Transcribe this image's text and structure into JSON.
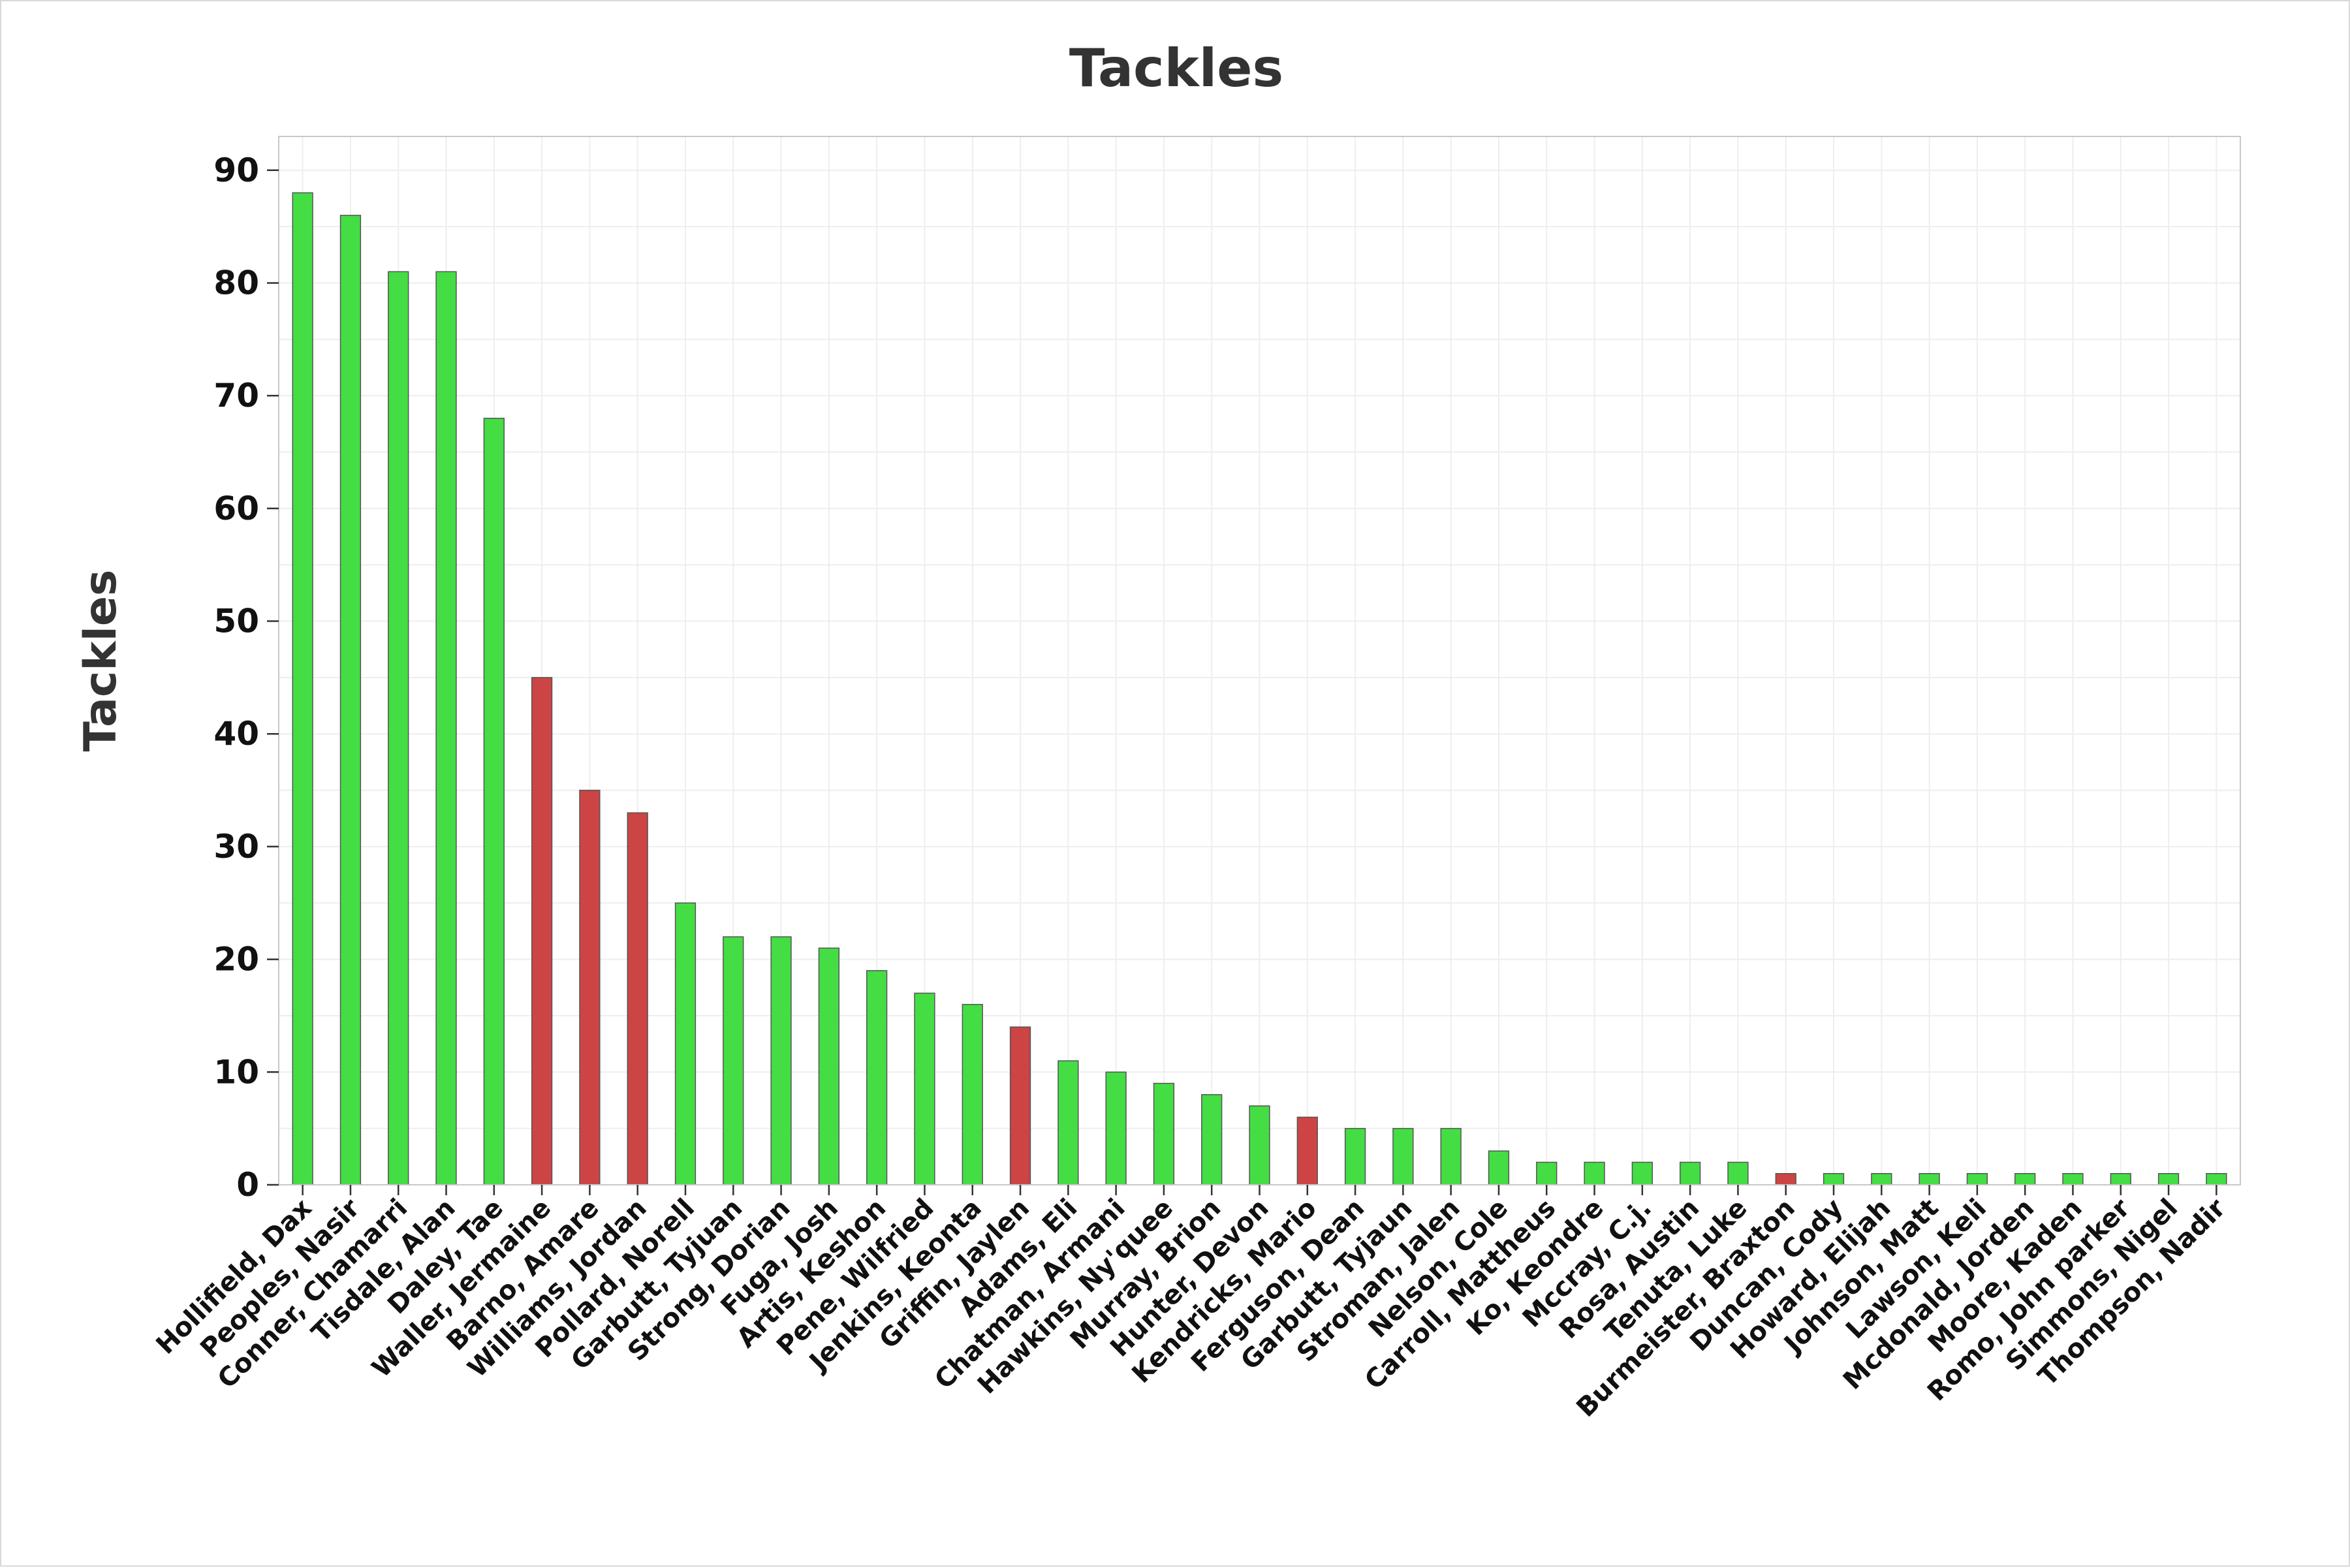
{
  "chart_data": {
    "type": "bar",
    "title": "Tackles",
    "xlabel": "",
    "ylabel": "Tackles",
    "ylim": [
      0,
      93
    ],
    "yticks": [
      0,
      10,
      20,
      30,
      40,
      50,
      60,
      70,
      80,
      90
    ],
    "grid": true,
    "legend": "none",
    "colors": {
      "green": "#44dd44",
      "red": "#cc4444"
    },
    "categories": [
      "Hollifield, Dax",
      "Peoples, Nasir",
      "Conner, Chamarri",
      "Tisdale, Alan",
      "Daley, Tae",
      "Waller, Jermaine",
      "Barno, Amare",
      "Williams, Jordan",
      "Pollard, Norell",
      "Garbutt, Tyjuan",
      "Strong, Dorian",
      "Fuga, Josh",
      "Artis, Keshon",
      "Pene, Wilfried",
      "Jenkins, Keonta",
      "Griffin, Jaylen",
      "Adams, Eli",
      "Chatman, Armani",
      "Hawkins, Ny'quee",
      "Murray, Brion",
      "Hunter, Devon",
      "Kendricks, Mario",
      "Ferguson, Dean",
      "Garbutt, Tyjaun",
      "Stroman, Jalen",
      "Nelson, Cole",
      "Carroll, Mattheus",
      "Ko, Keondre",
      "Mccray, C.j.",
      "Rosa, Austin",
      "Tenuta, Luke",
      "Burmeister, Braxton",
      "Duncan, Cody",
      "Howard, Elijah",
      "Johnson, Matt",
      "Lawson, Keli",
      "Mcdonald, Jorden",
      "Moore, Kaden",
      "Romo, John parker",
      "Simmons, Nigel",
      "Thompson, Nadir"
    ],
    "values": [
      88,
      86,
      81,
      81,
      68,
      45,
      35,
      33,
      25,
      22,
      22,
      21,
      19,
      17,
      16,
      14,
      11,
      10,
      9,
      8,
      7,
      6,
      5,
      5,
      5,
      3,
      2,
      2,
      2,
      2,
      2,
      1,
      1,
      1,
      1,
      1,
      1,
      1,
      1,
      1,
      1
    ],
    "bar_colors": [
      "green",
      "green",
      "green",
      "green",
      "green",
      "red",
      "red",
      "red",
      "green",
      "green",
      "green",
      "green",
      "green",
      "green",
      "green",
      "red",
      "green",
      "green",
      "green",
      "green",
      "green",
      "red",
      "green",
      "green",
      "green",
      "green",
      "green",
      "green",
      "green",
      "green",
      "green",
      "red",
      "green",
      "green",
      "green",
      "green",
      "green",
      "green",
      "green",
      "green",
      "green"
    ]
  }
}
